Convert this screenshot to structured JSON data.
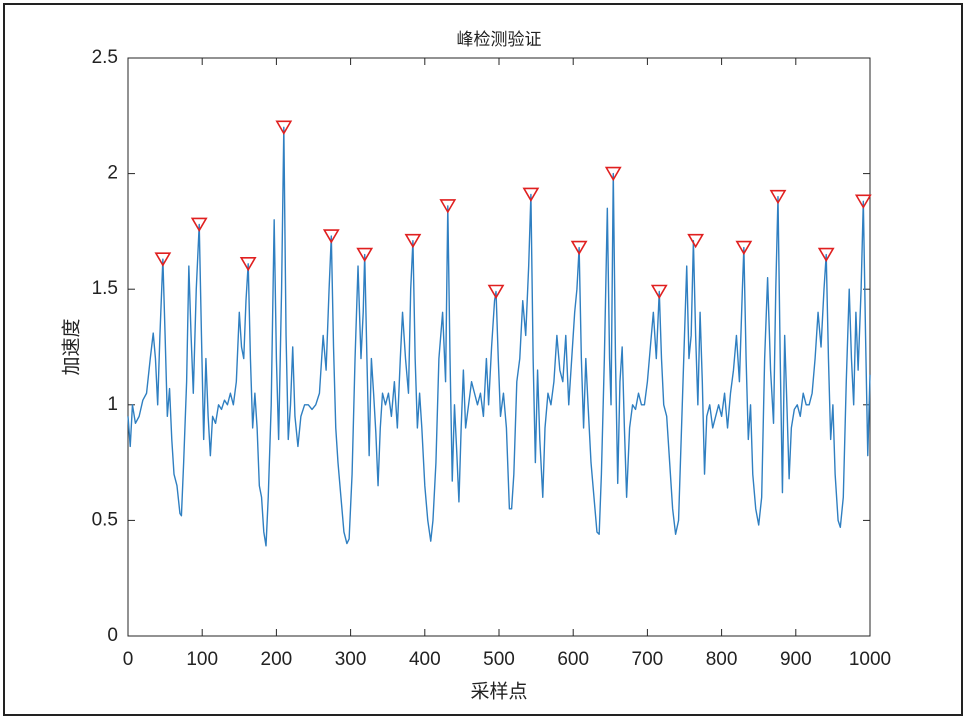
{
  "chart_data": {
    "type": "line",
    "title": "峰检测验证",
    "x_label": "采样点",
    "y_label": "加速度",
    "xlim": [
      0,
      1000
    ],
    "ylim": [
      0,
      2.5
    ],
    "xticks": [
      0,
      100,
      200,
      300,
      400,
      500,
      600,
      700,
      800,
      900,
      1000
    ],
    "yticks": [
      0,
      0.5,
      1,
      1.5,
      2,
      2.5
    ],
    "grid": false,
    "series": [
      {
        "color": "#2f7fc1",
        "marker": "none",
        "x": [
          0,
          3,
          6,
          10,
          15,
          20,
          25,
          30,
          34,
          37,
          40,
          43,
          47,
          50,
          53,
          56,
          59,
          62,
          66,
          70,
          72,
          75,
          79,
          82,
          85,
          88,
          92,
          96,
          99,
          102,
          105,
          108,
          111,
          114,
          118,
          122,
          126,
          130,
          134,
          138,
          142,
          146,
          150,
          153,
          156,
          159,
          162,
          165,
          168,
          171,
          174,
          177,
          180,
          183,
          186,
          189,
          193,
          197,
          200,
          203,
          207,
          210,
          213,
          216,
          219,
          222,
          225,
          229,
          233,
          238,
          243,
          248,
          253,
          258,
          263,
          267,
          271,
          274,
          277,
          280,
          283,
          287,
          291,
          295,
          298,
          302,
          306,
          310,
          314,
          317,
          319,
          322,
          325,
          328,
          331,
          334,
          337,
          340,
          343,
          347,
          351,
          355,
          359,
          363,
          367,
          370,
          374,
          378,
          381,
          384,
          387,
          390,
          393,
          396,
          400,
          404,
          408,
          411,
          415,
          419,
          424,
          428,
          431,
          434,
          437,
          440,
          443,
          446,
          449,
          452,
          455,
          459,
          463,
          467,
          471,
          475,
          479,
          483,
          486,
          490,
          494,
          496,
          499,
          502,
          506,
          510,
          514,
          517,
          520,
          524,
          528,
          532,
          536,
          540,
          543,
          546,
          549,
          552,
          555,
          559,
          562,
          566,
          570,
          574,
          578,
          582,
          586,
          590,
          594,
          598,
          602,
          605,
          608,
          611,
          614,
          617,
          620,
          624,
          628,
          632,
          635,
          638,
          642,
          646,
          649,
          651,
          654,
          657,
          660,
          663,
          666,
          669,
          672,
          676,
          680,
          684,
          688,
          692,
          696,
          700,
          704,
          708,
          712,
          716,
          719,
          722,
          726,
          730,
          734,
          738,
          742,
          746,
          750,
          753,
          756,
          759,
          762,
          765,
          768,
          771,
          774,
          777,
          780,
          784,
          788,
          792,
          796,
          800,
          804,
          808,
          812,
          816,
          820,
          824,
          828,
          830,
          833,
          836,
          839,
          842,
          846,
          850,
          854,
          858,
          862,
          866,
          870,
          873,
          876,
          879,
          882,
          885,
          888,
          891,
          894,
          898,
          902,
          906,
          910,
          914,
          918,
          922,
          926,
          930,
          934,
          938,
          941,
          944,
          947,
          950,
          953,
          957,
          960,
          964,
          968,
          972,
          975,
          978,
          981,
          984,
          988,
          991,
          994,
          997,
          1000
        ],
        "values": [
          0.95,
          0.82,
          1.0,
          0.92,
          0.95,
          1.02,
          1.05,
          1.2,
          1.31,
          1.2,
          1.0,
          1.3,
          1.63,
          1.3,
          0.95,
          1.07,
          0.85,
          0.7,
          0.65,
          0.53,
          0.52,
          0.75,
          1.1,
          1.6,
          1.3,
          1.05,
          1.5,
          1.78,
          1.3,
          0.85,
          1.2,
          0.95,
          0.78,
          0.95,
          0.92,
          1.0,
          0.98,
          1.02,
          1.0,
          1.05,
          1.0,
          1.1,
          1.4,
          1.25,
          1.2,
          1.45,
          1.61,
          1.2,
          0.9,
          1.05,
          0.9,
          0.65,
          0.6,
          0.45,
          0.39,
          0.6,
          1.0,
          1.8,
          1.2,
          0.85,
          1.5,
          2.2,
          1.3,
          0.85,
          1.0,
          1.25,
          0.95,
          0.82,
          0.95,
          1.0,
          1.0,
          0.98,
          1.0,
          1.05,
          1.3,
          1.15,
          1.5,
          1.73,
          1.25,
          0.9,
          0.75,
          0.6,
          0.45,
          0.4,
          0.42,
          0.7,
          1.2,
          1.6,
          1.2,
          1.4,
          1.65,
          1.2,
          0.78,
          1.2,
          1.05,
          0.88,
          0.65,
          0.9,
          1.05,
          1.0,
          1.05,
          0.95,
          1.1,
          0.9,
          1.2,
          1.4,
          1.2,
          1.05,
          1.5,
          1.71,
          1.2,
          0.9,
          1.05,
          0.9,
          0.65,
          0.5,
          0.41,
          0.5,
          0.75,
          1.2,
          1.4,
          1.1,
          1.86,
          1.2,
          0.67,
          1.0,
          0.8,
          0.58,
          0.9,
          1.15,
          0.9,
          1.0,
          1.1,
          1.05,
          1.0,
          1.05,
          0.95,
          1.2,
          1.0,
          1.25,
          1.45,
          1.49,
          1.2,
          0.95,
          1.05,
          0.9,
          0.55,
          0.55,
          0.7,
          1.1,
          1.2,
          1.45,
          1.3,
          1.6,
          1.91,
          1.2,
          0.75,
          1.15,
          0.85,
          0.6,
          0.9,
          1.05,
          1.0,
          1.1,
          1.3,
          1.15,
          1.1,
          1.3,
          1.0,
          1.2,
          1.4,
          1.5,
          1.68,
          1.2,
          0.9,
          1.2,
          1.0,
          0.75,
          0.6,
          0.45,
          0.44,
          0.7,
          1.2,
          1.85,
          1.2,
          1.0,
          2.0,
          1.2,
          0.66,
          1.1,
          1.25,
          0.9,
          0.6,
          0.9,
          1.0,
          0.98,
          1.05,
          1.0,
          1.0,
          1.1,
          1.25,
          1.4,
          1.2,
          1.49,
          1.2,
          1.0,
          0.95,
          0.75,
          0.55,
          0.44,
          0.5,
          0.9,
          1.3,
          1.6,
          1.2,
          1.3,
          1.71,
          1.3,
          1.0,
          1.4,
          1.1,
          0.7,
          0.95,
          1.0,
          0.9,
          0.95,
          1.0,
          0.95,
          1.05,
          0.9,
          1.05,
          1.15,
          1.3,
          1.1,
          1.5,
          1.68,
          1.2,
          0.85,
          1.0,
          0.7,
          0.55,
          0.48,
          0.6,
          1.2,
          1.55,
          1.15,
          0.92,
          1.5,
          1.9,
          1.2,
          0.62,
          1.3,
          1.0,
          0.68,
          0.9,
          0.98,
          1.0,
          0.95,
          1.05,
          1.0,
          1.0,
          1.05,
          1.2,
          1.4,
          1.25,
          1.5,
          1.65,
          1.2,
          0.85,
          1.0,
          0.7,
          0.5,
          0.47,
          0.6,
          1.1,
          1.5,
          1.2,
          1.0,
          1.4,
          1.15,
          1.5,
          1.88,
          1.3,
          0.78,
          1.13
        ]
      },
      {
        "color": "#e02020",
        "marker": "v",
        "x": [
          47,
          96,
          162,
          210,
          274,
          319,
          384,
          431,
          496,
          543,
          608,
          654,
          716,
          765,
          830,
          876,
          941,
          991
        ],
        "values": [
          1.63,
          1.78,
          1.61,
          2.2,
          1.73,
          1.65,
          1.71,
          1.86,
          1.49,
          1.91,
          1.68,
          2.0,
          1.49,
          1.71,
          1.68,
          1.9,
          1.65,
          1.88
        ]
      }
    ]
  }
}
